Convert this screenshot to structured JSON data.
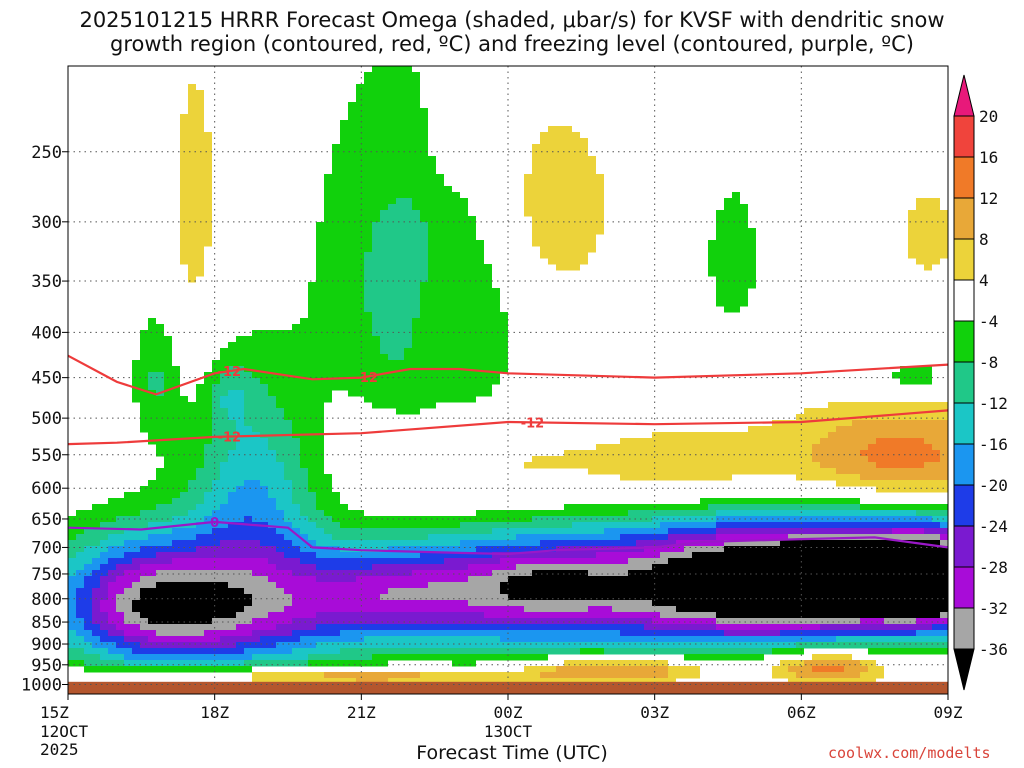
{
  "title": {
    "line1": "2025101215 HRRR Forecast Omega (shaded, μbar/s) for KVSF with dendritic snow",
    "line2": "growth region (contoured, red, ºC) and freezing level (contoured, purple, ºC)"
  },
  "credit": "coolwx.com/modelts",
  "chart_data": {
    "type": "heatmap",
    "xlabel": "Forecast Time (UTC)",
    "x_ticks": [
      {
        "hour": 0,
        "label": "15Z",
        "sub1": "12OCT",
        "sub2": "2025"
      },
      {
        "hour": 3,
        "label": "18Z"
      },
      {
        "hour": 6,
        "label": "21Z"
      },
      {
        "hour": 9,
        "label": "00Z",
        "sub1": "13OCT"
      },
      {
        "hour": 12,
        "label": "03Z"
      },
      {
        "hour": 15,
        "label": "06Z"
      },
      {
        "hour": 18,
        "label": "09Z"
      }
    ],
    "xlim": [
      0,
      18
    ],
    "ylabel": "",
    "y_ticks": [
      250,
      300,
      350,
      400,
      450,
      500,
      550,
      600,
      650,
      700,
      750,
      800,
      850,
      900,
      950,
      1000
    ],
    "ylim": [
      200,
      1025
    ],
    "y_scale": "log",
    "grid": true,
    "surface_pressure": 993,
    "colorbar": {
      "ticks": [
        20,
        16,
        12,
        8,
        4,
        -4,
        -8,
        -12,
        -16,
        -20,
        -24,
        -28,
        -32,
        -36
      ],
      "bins": [
        {
          "lo": 20,
          "hi": 99,
          "color": "#e8197a"
        },
        {
          "lo": 16,
          "hi": 20,
          "color": "#f0443c"
        },
        {
          "lo": 12,
          "hi": 16,
          "color": "#f07a28"
        },
        {
          "lo": 8,
          "hi": 12,
          "color": "#e8a838"
        },
        {
          "lo": 4,
          "hi": 8,
          "color": "#ecd33a"
        },
        {
          "lo": -4,
          "hi": 4,
          "color": "#ffffff"
        },
        {
          "lo": -8,
          "hi": -4,
          "color": "#11d10c"
        },
        {
          "lo": -12,
          "hi": -8,
          "color": "#20c888"
        },
        {
          "lo": -16,
          "hi": -12,
          "color": "#1bc6c6"
        },
        {
          "lo": -20,
          "hi": -16,
          "color": "#1b96f0"
        },
        {
          "lo": -24,
          "hi": -20,
          "color": "#1e3ce8"
        },
        {
          "lo": -28,
          "hi": -24,
          "color": "#7a1ad0"
        },
        {
          "lo": -32,
          "hi": -28,
          "color": "#a80cd8"
        },
        {
          "lo": -36,
          "hi": -32,
          "color": "#a6a6a6"
        },
        {
          "lo": -99,
          "hi": -36,
          "color": "#000000"
        }
      ]
    },
    "omega_features": [
      {
        "t": 3.0,
        "p": 820,
        "dt": 3.0,
        "dp": 140,
        "v": -30
      },
      {
        "t": 1.5,
        "p": 800,
        "dt": 1.7,
        "dp": 130,
        "v": -14
      },
      {
        "t": 6.5,
        "p": 790,
        "dt": 1.9,
        "dp": 90,
        "v": -16
      },
      {
        "t": 9.3,
        "p": 780,
        "dt": 2.6,
        "dp": 130,
        "v": -28
      },
      {
        "t": 9.8,
        "p": 770,
        "dt": 1.2,
        "dp": 50,
        "v": -6
      },
      {
        "t": 13.5,
        "p": 770,
        "dt": 2.7,
        "dp": 130,
        "v": -40
      },
      {
        "t": 16.3,
        "p": 760,
        "dt": 2.1,
        "dp": 110,
        "v": -36
      },
      {
        "t": 17.8,
        "p": 760,
        "dt": 1.2,
        "dp": 100,
        "v": -34
      },
      {
        "t": 3.8,
        "p": 600,
        "dt": 1.3,
        "dp": 170,
        "v": -14
      },
      {
        "t": 3.3,
        "p": 470,
        "dt": 0.5,
        "dp": 40,
        "v": -6
      },
      {
        "t": 1.8,
        "p": 450,
        "dt": 0.5,
        "dp": 80,
        "v": -8
      },
      {
        "t": 6.6,
        "p": 320,
        "dt": 1.8,
        "dp": 160,
        "v": -7
      },
      {
        "t": 7.8,
        "p": 410,
        "dt": 1.6,
        "dp": 120,
        "v": -7
      },
      {
        "t": 13.6,
        "p": 330,
        "dt": 0.7,
        "dp": 80,
        "v": -6
      },
      {
        "t": 17.3,
        "p": 450,
        "dt": 0.8,
        "dp": 25,
        "v": -8
      },
      {
        "t": 2.6,
        "p": 290,
        "dt": 0.6,
        "dp": 130,
        "v": 6
      },
      {
        "t": 7.8,
        "p": 240,
        "dt": 0.4,
        "dp": 30,
        "v": 5
      },
      {
        "t": 10.0,
        "p": 290,
        "dt": 1.3,
        "dp": 80,
        "v": 7
      },
      {
        "t": 7.6,
        "p": 400,
        "dt": 0.6,
        "dp": 70,
        "v": 6
      },
      {
        "t": 8.9,
        "p": 590,
        "dt": 2.6,
        "dp": 90,
        "v": 7
      },
      {
        "t": 12.8,
        "p": 580,
        "dt": 2.0,
        "dp": 70,
        "v": 9
      },
      {
        "t": 17.0,
        "p": 560,
        "dt": 2.4,
        "dp": 80,
        "v": 15
      },
      {
        "t": 17.6,
        "p": 310,
        "dt": 0.9,
        "dp": 60,
        "v": 5
      },
      {
        "t": 5.0,
        "p": 980,
        "dt": 4.8,
        "dp": 25,
        "v": 14
      },
      {
        "t": 10.6,
        "p": 960,
        "dt": 1.3,
        "dp": 35,
        "v": 13
      },
      {
        "t": 12.4,
        "p": 960,
        "dt": 1.0,
        "dp": 35,
        "v": 10
      },
      {
        "t": 15.5,
        "p": 955,
        "dt": 1.3,
        "dp": 45,
        "v": 17
      }
    ],
    "dgz_contours": [
      {
        "label": "-12",
        "label_at": [
          3.3,
          6.1
        ],
        "points": [
          [
            0,
            425
          ],
          [
            1,
            455
          ],
          [
            1.8,
            470
          ],
          [
            3,
            445
          ],
          [
            3.6,
            440
          ],
          [
            5,
            452
          ],
          [
            6,
            450
          ],
          [
            7,
            440
          ],
          [
            8,
            440
          ],
          [
            9,
            445
          ],
          [
            12,
            450
          ],
          [
            15,
            445
          ],
          [
            18,
            435
          ]
        ]
      },
      {
        "label": "-12",
        "label_at": [
          3.3,
          9.5
        ],
        "points": [
          [
            0,
            535
          ],
          [
            1,
            533
          ],
          [
            3,
            525
          ],
          [
            6,
            520
          ],
          [
            9,
            505
          ],
          [
            12,
            508
          ],
          [
            15,
            505
          ],
          [
            18,
            490
          ]
        ]
      }
    ],
    "freezing_level": {
      "label": "0",
      "label_at": [
        3.0
      ],
      "points": [
        [
          0,
          665
        ],
        [
          1.5,
          668
        ],
        [
          3,
          655
        ],
        [
          4.5,
          665
        ],
        [
          5,
          700
        ],
        [
          6,
          705
        ],
        [
          8,
          710
        ],
        [
          9,
          712
        ],
        [
          10,
          705
        ],
        [
          12,
          700
        ],
        [
          13,
          690
        ],
        [
          15,
          685
        ],
        [
          16.5,
          682
        ],
        [
          18,
          700
        ]
      ]
    }
  }
}
